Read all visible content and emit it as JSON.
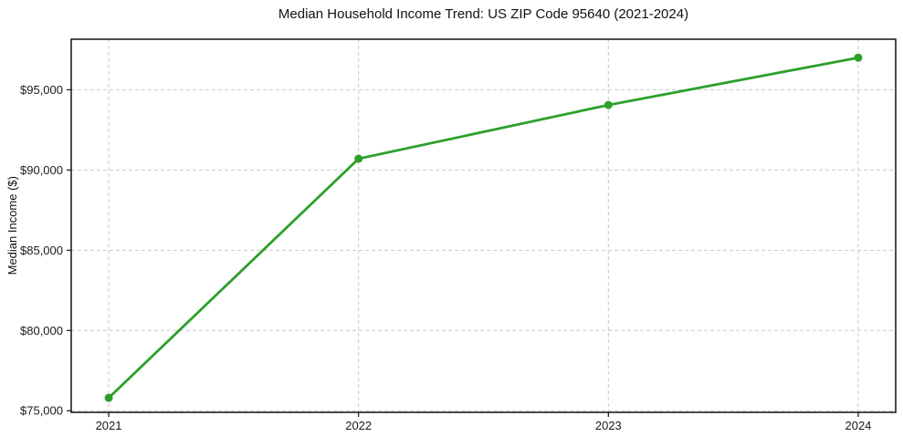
{
  "chart_data": {
    "type": "line",
    "title": "Median Household Income Trend: US ZIP Code 95640 (2021-2024)",
    "ylabel": "Median Income ($)",
    "xlabel": "",
    "x": [
      2021,
      2022,
      2023,
      2024
    ],
    "x_labels": [
      "2021",
      "2022",
      "2023",
      "2024"
    ],
    "values": [
      75800,
      90700,
      94050,
      97000
    ],
    "xlim": [
      2020.85,
      2024.15
    ],
    "ylim": [
      74900,
      98150
    ],
    "yticks": [
      {
        "value": 75000,
        "label": "$75,000"
      },
      {
        "value": 80000,
        "label": "$80,000"
      },
      {
        "value": 85000,
        "label": "$85,000"
      },
      {
        "value": 90000,
        "label": "$90,000"
      },
      {
        "value": 95000,
        "label": "$95,000"
      }
    ],
    "grid": true,
    "grid_style": "dashed",
    "legend_position": "none",
    "marker": "circle",
    "colors": {
      "line": "#2ca02c",
      "marker": "#2ca02c",
      "grid": "#c9c9c9",
      "spine": "#111111",
      "text": "#1a1a1a",
      "background": "#ffffff"
    }
  }
}
